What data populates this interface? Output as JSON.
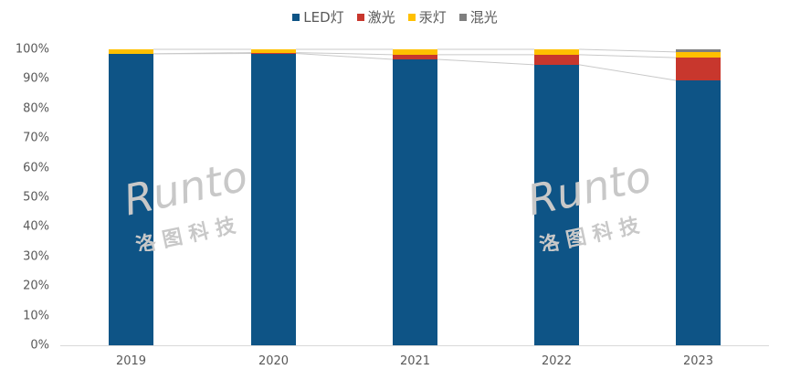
{
  "chart_data": {
    "type": "bar",
    "stacked": true,
    "normalized": true,
    "title": "",
    "xlabel": "",
    "ylabel": "",
    "categories": [
      "2019",
      "2020",
      "2021",
      "2022",
      "2023"
    ],
    "series": [
      {
        "name": "LED灯",
        "color": "#0E5486",
        "values": [
          98.5,
          98.6,
          96.6,
          94.8,
          89.5
        ]
      },
      {
        "name": "激光",
        "color": "#C8372D",
        "values": [
          0.0,
          0.3,
          1.6,
          3.4,
          7.7
        ]
      },
      {
        "name": "汞灯",
        "color": "#FFC000",
        "values": [
          1.5,
          1.1,
          1.8,
          1.8,
          1.9
        ]
      },
      {
        "name": "混光",
        "color": "#7F7F7F",
        "values": [
          0.0,
          0.0,
          0.0,
          0.0,
          0.9
        ]
      }
    ],
    "yticks": [
      "0%",
      "10%",
      "20%",
      "30%",
      "40%",
      "50%",
      "60%",
      "70%",
      "80%",
      "90%",
      "100%"
    ],
    "ylim": [
      0,
      100
    ],
    "grid": false,
    "legend_position": "top",
    "series_lines": true,
    "watermark": "Runto 洛图科技"
  },
  "legend": [
    {
      "label": "LED灯",
      "color": "#0E5486"
    },
    {
      "label": "激光",
      "color": "#C8372D"
    },
    {
      "label": "汞灯",
      "color": "#FFC000"
    },
    {
      "label": "混光",
      "color": "#7F7F7F"
    }
  ],
  "watermark": {
    "brand": "Runto",
    "cn": "洛 图 科 技"
  }
}
